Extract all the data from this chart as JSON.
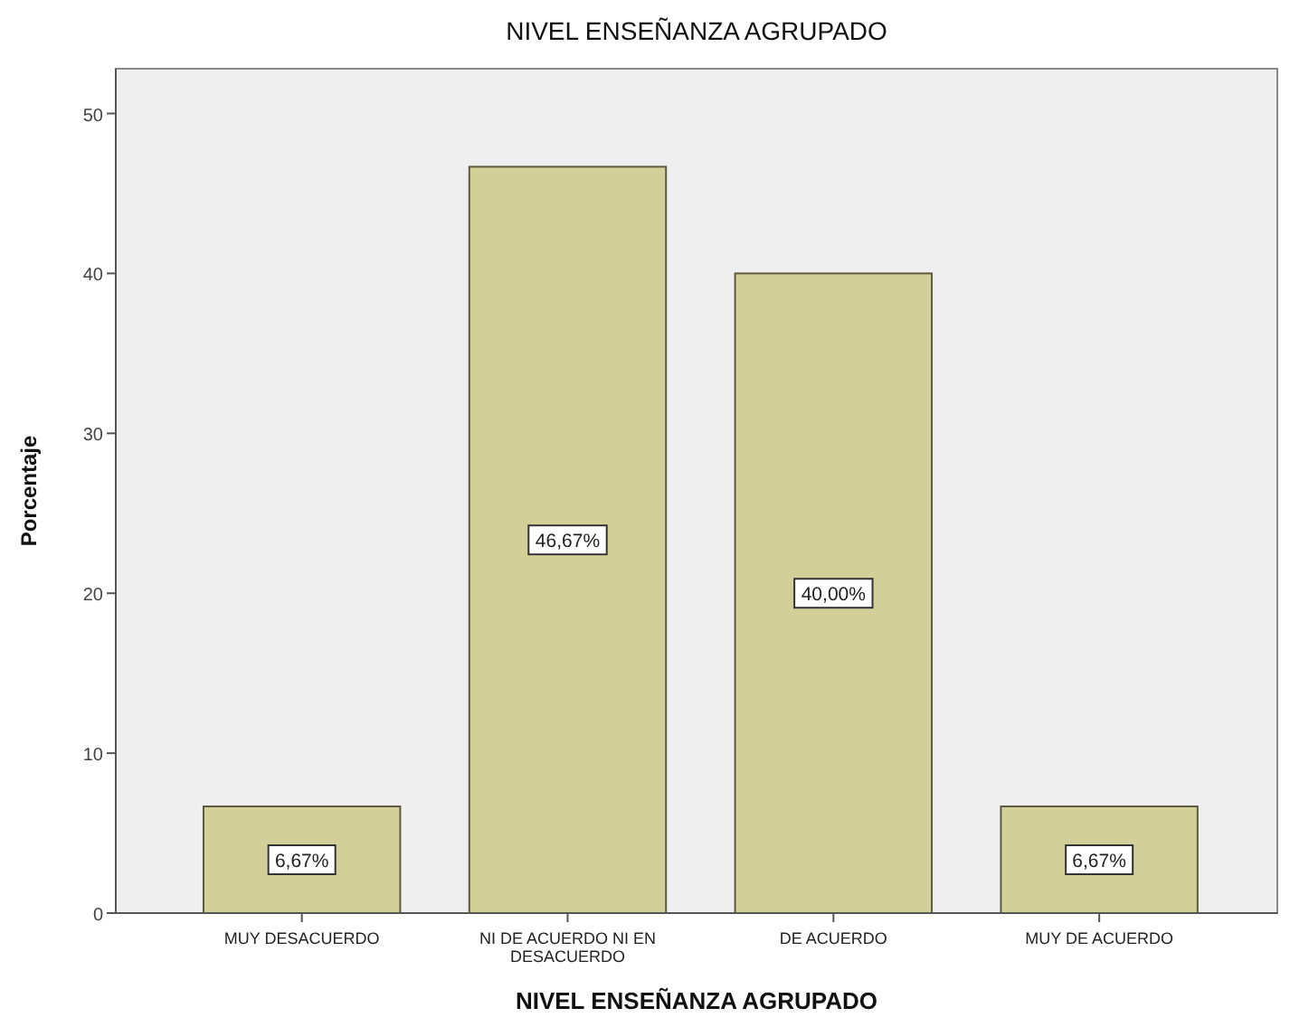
{
  "chart_data": {
    "type": "bar",
    "title": "NIVEL ENSEÑANZA AGRUPADO",
    "xlabel": "NIVEL ENSEÑANZA AGRUPADO",
    "ylabel": "Porcentaje",
    "categories": [
      "MUY DESACUERDO",
      "NI DE ACUERDO NI EN DESACUERDO",
      "DE ACUERDO",
      "MUY DE ACUERDO"
    ],
    "values": [
      6.67,
      46.67,
      40.0,
      6.67
    ],
    "value_labels": [
      "6,67%",
      "46,67%",
      "40,00%",
      "6,67%"
    ],
    "color": "#d2cf98",
    "ylim": [
      0,
      52.8
    ],
    "yticks": [
      0,
      10,
      20,
      30,
      40,
      50
    ],
    "grid": false
  }
}
